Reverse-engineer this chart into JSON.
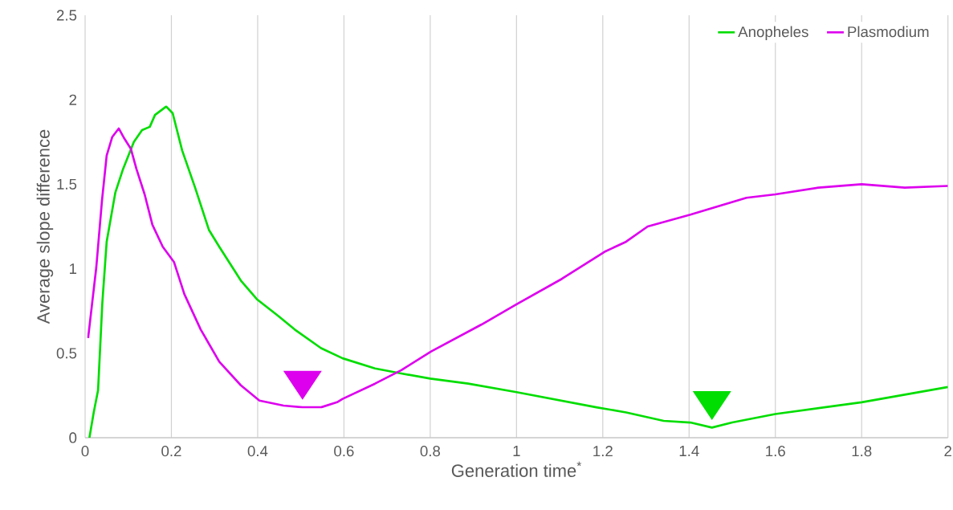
{
  "chart_data": {
    "type": "line",
    "xlabel": "Generation time$^{*}$",
    "ylabel": "Average slope difference",
    "xlim": [
      0,
      2
    ],
    "ylim": [
      0,
      2.5
    ],
    "xticks": [
      0,
      0.2,
      0.4,
      0.6,
      0.8,
      1,
      1.2,
      1.4,
      1.6,
      1.8,
      2
    ],
    "yticks": [
      0,
      0.5,
      1,
      1.5,
      2,
      2.5
    ],
    "grid": "x",
    "legend": "top right",
    "marker": "none",
    "line_style": "solid",
    "series": [
      {
        "name": "Anopheles",
        "color": "#00dd00",
        "x": [
          0.01,
          0.02,
          0.03,
          0.04,
          0.05,
          0.07,
          0.088,
          0.113,
          0.132,
          0.15,
          0.162,
          0.188,
          0.203,
          0.225,
          0.255,
          0.287,
          0.311,
          0.361,
          0.398,
          0.448,
          0.486,
          0.547,
          0.597,
          0.672,
          0.733,
          0.8,
          0.888,
          1.0,
          1.185,
          1.254,
          1.341,
          1.403,
          1.453,
          1.5,
          1.6,
          1.8,
          2.0
        ],
        "values": [
          0,
          0.15,
          0.28,
          0.8,
          1.16,
          1.45,
          1.59,
          1.75,
          1.82,
          1.84,
          1.91,
          1.96,
          1.92,
          1.7,
          1.48,
          1.23,
          1.13,
          0.93,
          0.82,
          0.72,
          0.64,
          0.53,
          0.47,
          0.41,
          0.38,
          0.35,
          0.32,
          0.27,
          0.18,
          0.15,
          0.1,
          0.09,
          0.06,
          0.09,
          0.14,
          0.21,
          0.3
        ]
      },
      {
        "name": "Plasmodium",
        "color": "#dd00ee",
        "x": [
          0.007,
          0.026,
          0.039,
          0.05,
          0.063,
          0.078,
          0.091,
          0.106,
          0.119,
          0.138,
          0.156,
          0.18,
          0.206,
          0.23,
          0.268,
          0.311,
          0.361,
          0.404,
          0.46,
          0.504,
          0.547,
          0.584,
          0.597,
          0.672,
          0.733,
          0.802,
          0.919,
          1.0,
          1.105,
          1.204,
          1.254,
          1.304,
          1.403,
          1.533,
          1.6,
          1.7,
          1.8,
          1.9,
          2.0
        ],
        "values": [
          0.59,
          1.01,
          1.4,
          1.67,
          1.78,
          1.83,
          1.77,
          1.71,
          1.59,
          1.44,
          1.26,
          1.13,
          1.04,
          0.85,
          0.64,
          0.45,
          0.31,
          0.22,
          0.19,
          0.18,
          0.18,
          0.21,
          0.23,
          0.32,
          0.4,
          0.51,
          0.67,
          0.79,
          0.94,
          1.1,
          1.16,
          1.25,
          1.32,
          1.42,
          1.44,
          1.48,
          1.5,
          1.48,
          1.49
        ]
      }
    ]
  }
}
